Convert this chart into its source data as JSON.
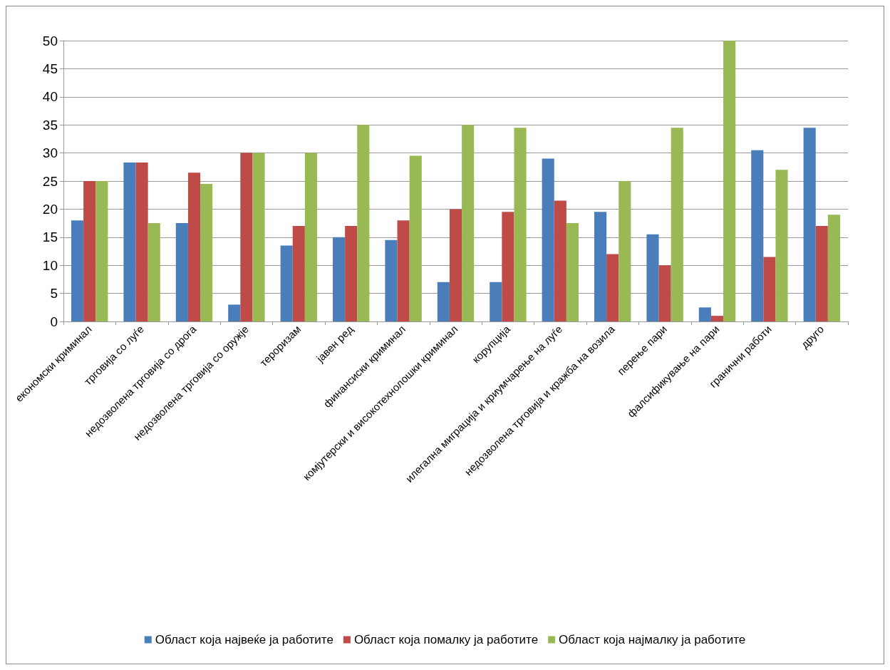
{
  "chart_data": {
    "type": "bar",
    "categories": [
      "економски криминал",
      "трговија со луѓе",
      "недозволена трговија со дрога",
      "недозволена трговија со оружје",
      "тероризам",
      "јавен ред",
      "финансиски криминал",
      "комјутерски и високотехнолошки криминал",
      "корупција",
      "илегална миграција и криумчарење на луѓе",
      "недозволена трговија и кражба на возила",
      "перење пари",
      "фалсификување на пари",
      "гранични работи",
      "друго"
    ],
    "series": [
      {
        "name": "Област која највеќе ја работите",
        "color": "#4a7ebb",
        "values": [
          18,
          28.3,
          17.5,
          3,
          13.5,
          15,
          14.5,
          7,
          7,
          29,
          19.5,
          15.5,
          2.5,
          30.5,
          34.5
        ]
      },
      {
        "name": "Област која помалку ја работите",
        "color": "#be4b48",
        "values": [
          25,
          28.3,
          26.5,
          30,
          17,
          17,
          18,
          20,
          19.5,
          21.5,
          12,
          10,
          1,
          11.5,
          17
        ]
      },
      {
        "name": "Област која најмалку ја работите",
        "color": "#98b954",
        "values": [
          25,
          17.5,
          24.5,
          30,
          30,
          35,
          29.5,
          35,
          34.5,
          17.5,
          25,
          34.5,
          50,
          27,
          19
        ]
      }
    ],
    "ylim": [
      0,
      50
    ],
    "yticks": [
      0,
      5,
      10,
      15,
      20,
      25,
      30,
      35,
      40,
      45,
      50
    ],
    "grid": "y",
    "legend": "bottom"
  }
}
